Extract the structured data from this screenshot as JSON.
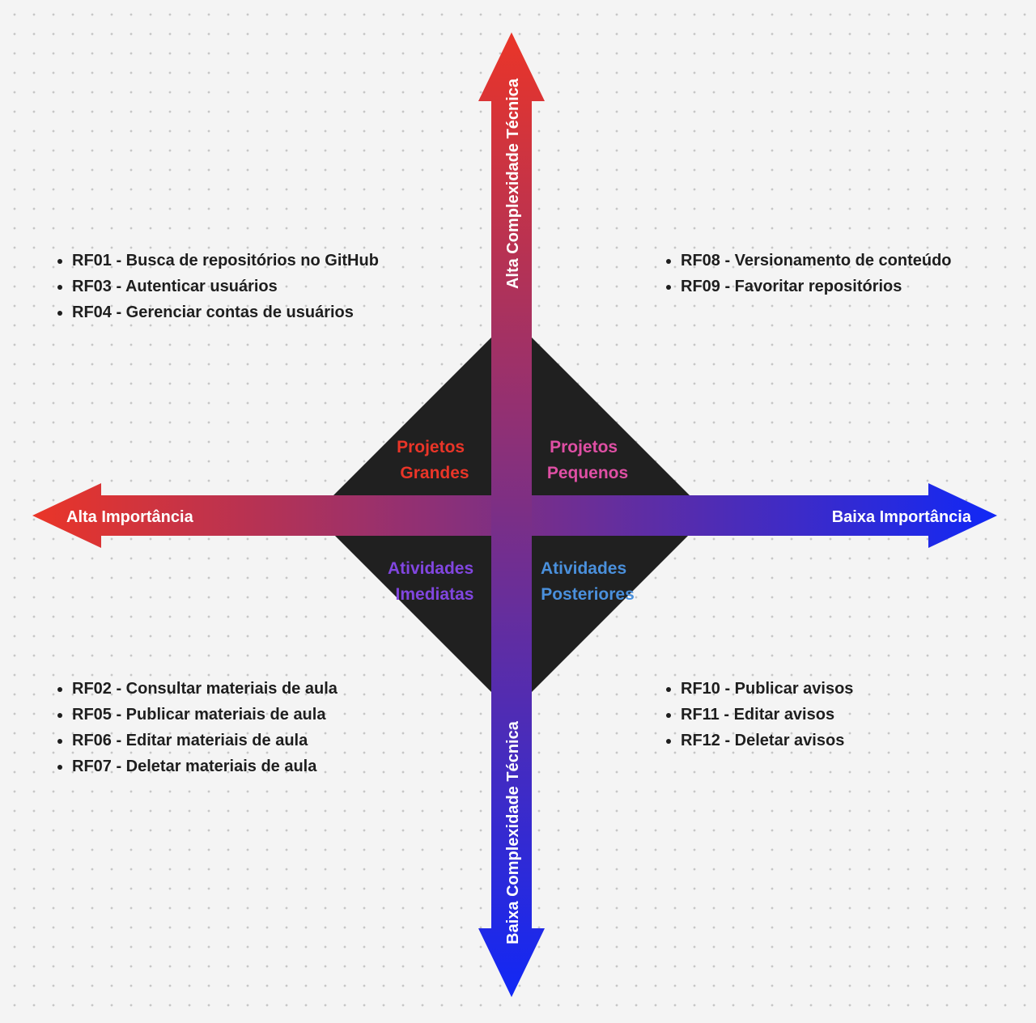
{
  "axes": {
    "left_label": "Alta Importância",
    "right_label": "Baixa Importância",
    "top_label": "Alta Complexidade Técnica",
    "bottom_label": "Baixa Complexidade Técnica"
  },
  "colors": {
    "red": "#ea3528",
    "purple": "#7b2f86",
    "blue": "#1128f6",
    "diamond": "#202020",
    "text": "#1e1e1e"
  },
  "quadrants": {
    "top_left": {
      "line1": "Projetos",
      "line2": "Grandes",
      "color": "#ea3528"
    },
    "top_right": {
      "line1": "Projetos",
      "line2": "Pequenos",
      "color": "#df4fa4"
    },
    "bottom_left": {
      "line1": "Atividades",
      "line2": "Imediatas",
      "color": "#8146e0"
    },
    "bottom_right": {
      "line1": "Atividades",
      "line2": "Posteriores",
      "color": "#4a90dc"
    }
  },
  "requirements": {
    "top_left": [
      "RF01 - Busca de repositórios no GitHub",
      "RF03 - Autenticar usuários",
      "RF04 - Gerenciar contas de usuários"
    ],
    "top_right": [
      "RF08 - Versionamento de conteúdo",
      "RF09 - Favoritar repositórios"
    ],
    "bottom_left": [
      "RF02 - Consultar materiais de aula",
      "RF05 - Publicar materiais de aula",
      "RF06 - Editar materiais de aula",
      "RF07 - Deletar materiais de aula"
    ],
    "bottom_right": [
      "RF10 - Publicar avisos",
      "RF11 - Editar avisos",
      "RF12 - Deletar avisos"
    ]
  }
}
